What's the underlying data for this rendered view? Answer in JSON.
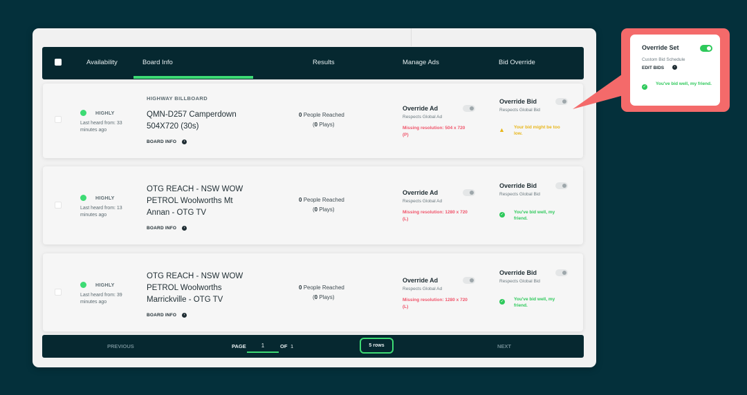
{
  "header": {
    "tabs": [
      {
        "label": "Availability"
      },
      {
        "label": "Board Info"
      },
      {
        "label": "Results"
      },
      {
        "label": "Manage Ads"
      },
      {
        "label": "Bid Override"
      }
    ],
    "active_tab": "Board Info"
  },
  "rows": [
    {
      "status": "HIGHLY",
      "last_heard": "Last heard from: 33 minutes ago",
      "type": "HIGHWAY BILLBOARD",
      "name": "QMN-D257 Camperdown 504X720 (30s)",
      "board_info": "BOARD INFO",
      "people_count": "0",
      "people_label": "People Reached",
      "plays_count": "0",
      "plays_label": "Plays",
      "override_ad": "Override Ad",
      "override_ad_sub": "Respects Global Ad",
      "missing": "Missing resolution: 504 x 720 (P)",
      "override_bid": "Override Bid",
      "override_bid_sub": "Respects Global Bid",
      "bid_msg": "Your bid might be too low."
    },
    {
      "status": "HIGHLY",
      "last_heard": "Last heard from: 13 minutes ago",
      "name": "OTG REACH - NSW WOW PETROL Woolworths Mt Annan - OTG TV",
      "board_info": "BOARD INFO",
      "people_count": "0",
      "people_label": "People Reached",
      "plays_count": "0",
      "plays_label": "Plays",
      "override_ad": "Override Ad",
      "override_ad_sub": "Respects Global Ad",
      "missing": "Missing resolution: 1280 x 720 (L)",
      "override_bid": "Override Bid",
      "override_bid_sub": "Respects Global Bid",
      "bid_msg": "You've bid well, my friend."
    },
    {
      "status": "HIGHLY",
      "last_heard": "Last heard from: 39 minutes ago",
      "name": "OTG REACH - NSW WOW PETROL Woolworths Marrickville - OTG TV",
      "board_info": "BOARD INFO",
      "people_count": "0",
      "people_label": "People Reached",
      "plays_count": "0",
      "plays_label": "Plays",
      "override_ad": "Override Ad",
      "override_ad_sub": "Respects Global Ad",
      "missing": "Missing resolution: 1280 x 720 (L)",
      "override_bid": "Override Bid",
      "override_bid_sub": "Respects Global Bid",
      "bid_msg": "You've bid well, my friend."
    }
  ],
  "footer": {
    "previous": "PREVIOUS",
    "page_label": "PAGE",
    "page_value": "1",
    "of_label": "OF",
    "total_pages": "1",
    "rows_label": "5 rows",
    "next": "NEXT"
  },
  "callout": {
    "title": "Override Set",
    "subtitle": "Custom Bid Schedule",
    "edit_label": "EDIT BIDS",
    "message": "You've bid well, my friend."
  },
  "colors": {
    "background": "#04303b",
    "header": "#062830",
    "accent_green": "#3ddb74",
    "error_red": "#f0546a",
    "warning_yellow": "#e8b61a",
    "callout": "#f46a6a"
  },
  "icons": [
    "check-circle-icon",
    "arrow-right-circle-icon",
    "warning-triangle-icon",
    "toggle-switch"
  ]
}
